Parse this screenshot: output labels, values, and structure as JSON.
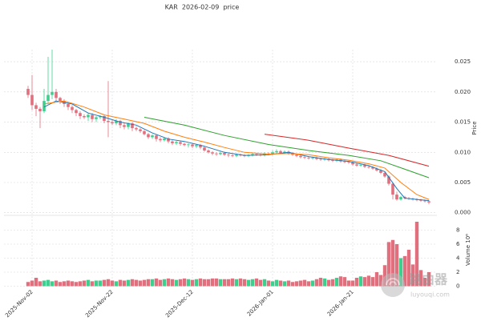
{
  "chart_data": {
    "type": "candlestick",
    "title": "KAR  2026-02-09  price",
    "y_label": "Price",
    "volume_label": "Volume 10⁶",
    "up_color": "#3ecf8e",
    "down_color": "#e0707e",
    "grid": true,
    "xlim": [
      "2025-10-26",
      "2026-02-11"
    ],
    "xticks": [
      {
        "value": "2025-11-02",
        "label": "2025-Nov-02"
      },
      {
        "value": "2025-11-22",
        "label": "2025-Nov-22"
      },
      {
        "value": "2025-12-12",
        "label": "2025-Dec-12"
      },
      {
        "value": "2026-01-01",
        "label": "2026-Jan-01"
      },
      {
        "value": "2026-01-21",
        "label": "2026-Jan-21"
      }
    ],
    "ylim": [
      -0.0003,
      0.027
    ],
    "yticks": [
      {
        "value": 0,
        "label": "0.000"
      },
      {
        "value": 0.005,
        "label": "0.005"
      },
      {
        "value": 0.01,
        "label": "0.010"
      },
      {
        "value": 0.015,
        "label": "0.015"
      },
      {
        "value": 0.02,
        "label": "0.020"
      },
      {
        "value": 0.025,
        "label": "0.025"
      }
    ],
    "volume_ylim": [
      0,
      10
    ],
    "volume_yticks": [
      0,
      2,
      4,
      6,
      8
    ],
    "x": [
      "2025-11-01",
      "2025-11-02",
      "2025-11-03",
      "2025-11-04",
      "2025-11-05",
      "2025-11-06",
      "2025-11-07",
      "2025-11-08",
      "2025-11-09",
      "2025-11-10",
      "2025-11-11",
      "2025-11-12",
      "2025-11-13",
      "2025-11-14",
      "2025-11-15",
      "2025-11-16",
      "2025-11-17",
      "2025-11-18",
      "2025-11-19",
      "2025-11-20",
      "2025-11-21",
      "2025-11-22",
      "2025-11-23",
      "2025-11-24",
      "2025-11-25",
      "2025-11-26",
      "2025-11-27",
      "2025-11-28",
      "2025-11-29",
      "2025-11-30",
      "2025-12-01",
      "2025-12-02",
      "2025-12-03",
      "2025-12-04",
      "2025-12-05",
      "2025-12-06",
      "2025-12-07",
      "2025-12-08",
      "2025-12-09",
      "2025-12-10",
      "2025-12-11",
      "2025-12-12",
      "2025-12-13",
      "2025-12-14",
      "2025-12-15",
      "2025-12-16",
      "2025-12-17",
      "2025-12-18",
      "2025-12-19",
      "2025-12-20",
      "2025-12-21",
      "2025-12-22",
      "2025-12-23",
      "2025-12-24",
      "2025-12-25",
      "2025-12-26",
      "2025-12-27",
      "2025-12-28",
      "2025-12-29",
      "2025-12-30",
      "2025-12-31",
      "2026-01-01",
      "2026-01-02",
      "2026-01-03",
      "2026-01-04",
      "2026-01-05",
      "2026-01-06",
      "2026-01-07",
      "2026-01-08",
      "2026-01-09",
      "2026-01-10",
      "2026-01-11",
      "2026-01-12",
      "2026-01-13",
      "2026-01-14",
      "2026-01-15",
      "2026-01-16",
      "2026-01-17",
      "2026-01-18",
      "2026-01-19",
      "2026-01-20",
      "2026-01-21",
      "2026-01-22",
      "2026-01-23",
      "2026-01-24",
      "2026-01-25",
      "2026-01-26",
      "2026-01-27",
      "2026-01-28",
      "2026-01-29",
      "2026-01-30",
      "2026-01-31",
      "2026-02-01",
      "2026-02-02",
      "2026-02-03",
      "2026-02-04",
      "2026-02-05",
      "2026-02-06",
      "2026-02-07",
      "2026-02-08",
      "2026-02-09"
    ],
    "open": [
      0.0205,
      0.0195,
      0.0178,
      0.0172,
      0.0168,
      0.0185,
      0.0195,
      0.02,
      0.019,
      0.0185,
      0.018,
      0.0175,
      0.017,
      0.0165,
      0.016,
      0.0158,
      0.0162,
      0.0155,
      0.0158,
      0.016,
      0.0152,
      0.015,
      0.0148,
      0.0152,
      0.0145,
      0.0142,
      0.0148,
      0.014,
      0.0138,
      0.0135,
      0.013,
      0.0125,
      0.0128,
      0.0122,
      0.012,
      0.0123,
      0.0118,
      0.0115,
      0.0117,
      0.0114,
      0.0112,
      0.0113,
      0.011,
      0.0112,
      0.0108,
      0.0103,
      0.01,
      0.0098,
      0.0097,
      0.0099,
      0.0096,
      0.0095,
      0.0094,
      0.0096,
      0.0095,
      0.0094,
      0.0095,
      0.0097,
      0.0096,
      0.0095,
      0.0098,
      0.0097,
      0.01,
      0.0102,
      0.0099,
      0.0101,
      0.0098,
      0.0096,
      0.0094,
      0.0092,
      0.0091,
      0.009,
      0.0091,
      0.0089,
      0.0088,
      0.0089,
      0.0087,
      0.0086,
      0.0088,
      0.0085,
      0.0084,
      0.0083,
      0.008,
      0.0078,
      0.0079,
      0.0076,
      0.0075,
      0.0073,
      0.007,
      0.0066,
      0.006,
      0.0048,
      0.003,
      0.0022,
      0.0026,
      0.0024,
      0.0023,
      0.0022,
      0.0021,
      0.002,
      0.0019
    ],
    "high": [
      0.021,
      0.0228,
      0.0182,
      0.0175,
      0.0205,
      0.0258,
      0.027,
      0.0205,
      0.0192,
      0.0188,
      0.0182,
      0.0178,
      0.0172,
      0.0168,
      0.0163,
      0.0165,
      0.0165,
      0.016,
      0.0162,
      0.0162,
      0.0218,
      0.0153,
      0.0155,
      0.0154,
      0.0148,
      0.015,
      0.015,
      0.0143,
      0.014,
      0.0137,
      0.0132,
      0.013,
      0.013,
      0.0125,
      0.0125,
      0.0125,
      0.012,
      0.0119,
      0.0119,
      0.0116,
      0.0115,
      0.0115,
      0.0114,
      0.0114,
      0.011,
      0.0105,
      0.0102,
      0.01,
      0.0101,
      0.0101,
      0.0098,
      0.0097,
      0.0098,
      0.0098,
      0.0097,
      0.0097,
      0.0099,
      0.0099,
      0.0098,
      0.01,
      0.01,
      0.0103,
      0.0105,
      0.0104,
      0.0103,
      0.0103,
      0.01,
      0.0098,
      0.0096,
      0.0094,
      0.0093,
      0.0093,
      0.0093,
      0.0091,
      0.0091,
      0.0091,
      0.0089,
      0.009,
      0.009,
      0.0087,
      0.0086,
      0.0085,
      0.0082,
      0.0081,
      0.0081,
      0.0078,
      0.0077,
      0.0075,
      0.0072,
      0.0068,
      0.0062,
      0.005,
      0.0035,
      0.0028,
      0.0028,
      0.0026,
      0.0025,
      0.0024,
      0.0023,
      0.0022,
      0.0021
    ],
    "low": [
      0.019,
      0.017,
      0.016,
      0.014,
      0.0165,
      0.018,
      0.0188,
      0.0185,
      0.018,
      0.0175,
      0.017,
      0.0165,
      0.016,
      0.0155,
      0.0155,
      0.0152,
      0.015,
      0.015,
      0.0155,
      0.0148,
      0.0125,
      0.0145,
      0.0145,
      0.014,
      0.0138,
      0.0138,
      0.0135,
      0.0135,
      0.0132,
      0.0128,
      0.0122,
      0.0122,
      0.0118,
      0.0117,
      0.0118,
      0.0115,
      0.0112,
      0.0112,
      0.0111,
      0.011,
      0.0108,
      0.0107,
      0.0107,
      0.0105,
      0.0101,
      0.0098,
      0.0095,
      0.0094,
      0.0095,
      0.0094,
      0.0092,
      0.0092,
      0.0092,
      0.0093,
      0.0092,
      0.0092,
      0.0093,
      0.0094,
      0.0093,
      0.0093,
      0.0095,
      0.0095,
      0.0098,
      0.0097,
      0.0097,
      0.0096,
      0.0094,
      0.0092,
      0.009,
      0.0089,
      0.0088,
      0.0088,
      0.0087,
      0.0086,
      0.0086,
      0.0085,
      0.0084,
      0.0084,
      0.0083,
      0.0082,
      0.0081,
      0.0078,
      0.0076,
      0.0076,
      0.0074,
      0.0073,
      0.0071,
      0.0068,
      0.0064,
      0.0058,
      0.0045,
      0.0022,
      0.002,
      0.002,
      0.0022,
      0.0021,
      0.002,
      0.0019,
      0.0018,
      0.0017,
      0.0014
    ],
    "close": [
      0.0195,
      0.0178,
      0.0172,
      0.0168,
      0.0185,
      0.0195,
      0.02,
      0.019,
      0.0185,
      0.018,
      0.0175,
      0.017,
      0.0165,
      0.016,
      0.0158,
      0.0162,
      0.0155,
      0.0158,
      0.016,
      0.0152,
      0.015,
      0.0148,
      0.0152,
      0.0145,
      0.0142,
      0.0148,
      0.014,
      0.0138,
      0.0135,
      0.013,
      0.0125,
      0.0128,
      0.0122,
      0.012,
      0.0123,
      0.0118,
      0.0115,
      0.0117,
      0.0114,
      0.0112,
      0.0113,
      0.011,
      0.0112,
      0.0108,
      0.0103,
      0.01,
      0.0098,
      0.0097,
      0.0099,
      0.0096,
      0.0095,
      0.0094,
      0.0096,
      0.0095,
      0.0094,
      0.0095,
      0.0097,
      0.0096,
      0.0095,
      0.0098,
      0.0097,
      0.01,
      0.0102,
      0.0099,
      0.0101,
      0.0098,
      0.0096,
      0.0094,
      0.0092,
      0.0091,
      0.009,
      0.0091,
      0.0089,
      0.0088,
      0.0089,
      0.0087,
      0.0086,
      0.0088,
      0.0085,
      0.0084,
      0.0083,
      0.008,
      0.0078,
      0.0079,
      0.0076,
      0.0075,
      0.0073,
      0.007,
      0.0066,
      0.006,
      0.0048,
      0.003,
      0.0022,
      0.0026,
      0.0024,
      0.0023,
      0.0022,
      0.0021,
      0.002,
      0.0019,
      0.0017
    ],
    "volume": [
      0.6,
      0.8,
      1.2,
      0.7,
      0.8,
      0.9,
      0.7,
      0.8,
      0.6,
      0.7,
      0.8,
      0.7,
      0.6,
      0.7,
      0.8,
      0.9,
      0.7,
      0.8,
      0.8,
      0.9,
      1.0,
      0.8,
      0.7,
      0.9,
      0.8,
      0.9,
      1.0,
      0.9,
      0.8,
      0.9,
      1.0,
      1.0,
      1.1,
      0.9,
      1.0,
      1.1,
      1.0,
      0.9,
      1.0,
      1.1,
      1.0,
      0.9,
      1.0,
      1.1,
      1.0,
      1.0,
      1.1,
      1.1,
      1.0,
      1.0,
      1.0,
      1.1,
      1.0,
      1.1,
      1.0,
      0.9,
      1.0,
      1.1,
      0.9,
      1.0,
      0.8,
      0.7,
      0.9,
      0.8,
      0.7,
      0.8,
      0.6,
      0.7,
      0.8,
      0.9,
      0.7,
      0.8,
      1.0,
      1.2,
      1.1,
      0.9,
      1.0,
      1.2,
      1.4,
      1.3,
      0.8,
      0.8,
      1.2,
      1.4,
      1.3,
      1.5,
      1.3,
      2.0,
      1.6,
      3.0,
      6.3,
      6.6,
      6.0,
      4.0,
      4.3,
      5.2,
      3.1,
      9.2,
      2.3,
      1.2,
      2.0
    ],
    "series": [
      {
        "color": "#1f77b4",
        "x": [
          "2025-11-05",
          "2025-11-08",
          "2025-11-12",
          "2025-11-16",
          "2025-11-20",
          "2025-11-24",
          "2025-11-28",
          "2025-12-02",
          "2025-12-06",
          "2025-12-10",
          "2025-12-15",
          "2025-12-20",
          "2025-12-25",
          "2025-12-31",
          "2026-01-05",
          "2026-01-10",
          "2026-01-15",
          "2026-01-20",
          "2026-01-25",
          "2026-01-29",
          "2026-02-01",
          "2026-02-03",
          "2026-02-09"
        ],
        "values": [
          0.0175,
          0.0185,
          0.018,
          0.0165,
          0.0158,
          0.015,
          0.0145,
          0.0132,
          0.0122,
          0.0118,
          0.011,
          0.01,
          0.0095,
          0.0096,
          0.01,
          0.0093,
          0.0088,
          0.0085,
          0.0078,
          0.0068,
          0.004,
          0.0024,
          0.002
        ]
      },
      {
        "color": "#ff7f0e",
        "x": [
          "2025-11-05",
          "2025-11-10",
          "2025-11-15",
          "2025-11-20",
          "2025-11-25",
          "2025-11-30",
          "2025-12-05",
          "2025-12-10",
          "2025-12-15",
          "2025-12-20",
          "2025-12-25",
          "2025-12-31",
          "2026-01-05",
          "2026-01-10",
          "2026-01-15",
          "2026-01-20",
          "2026-01-25",
          "2026-01-29",
          "2026-02-02",
          "2026-02-06",
          "2026-02-09"
        ],
        "values": [
          0.018,
          0.0185,
          0.0175,
          0.0162,
          0.0155,
          0.0148,
          0.0135,
          0.0125,
          0.0117,
          0.0108,
          0.01,
          0.0097,
          0.0098,
          0.0096,
          0.0091,
          0.0087,
          0.0081,
          0.0074,
          0.005,
          0.003,
          0.0022
        ]
      },
      {
        "color": "#2ca02c",
        "x": [
          "2025-11-30",
          "2025-12-10",
          "2025-12-20",
          "2025-12-31",
          "2026-01-10",
          "2026-01-20",
          "2026-01-28",
          "2026-02-03",
          "2026-02-09"
        ],
        "values": [
          0.0158,
          0.0145,
          0.0128,
          0.0113,
          0.0103,
          0.0095,
          0.0086,
          0.0072,
          0.0058
        ]
      },
      {
        "color": "#d62728",
        "x": [
          "2025-12-30",
          "2026-01-10",
          "2026-01-20",
          "2026-01-30",
          "2026-02-09"
        ],
        "values": [
          0.013,
          0.012,
          0.0107,
          0.0095,
          0.0077
        ]
      }
    ],
    "watermark": {
      "title": "路由器",
      "subtitle": "luyouqi.com"
    }
  }
}
